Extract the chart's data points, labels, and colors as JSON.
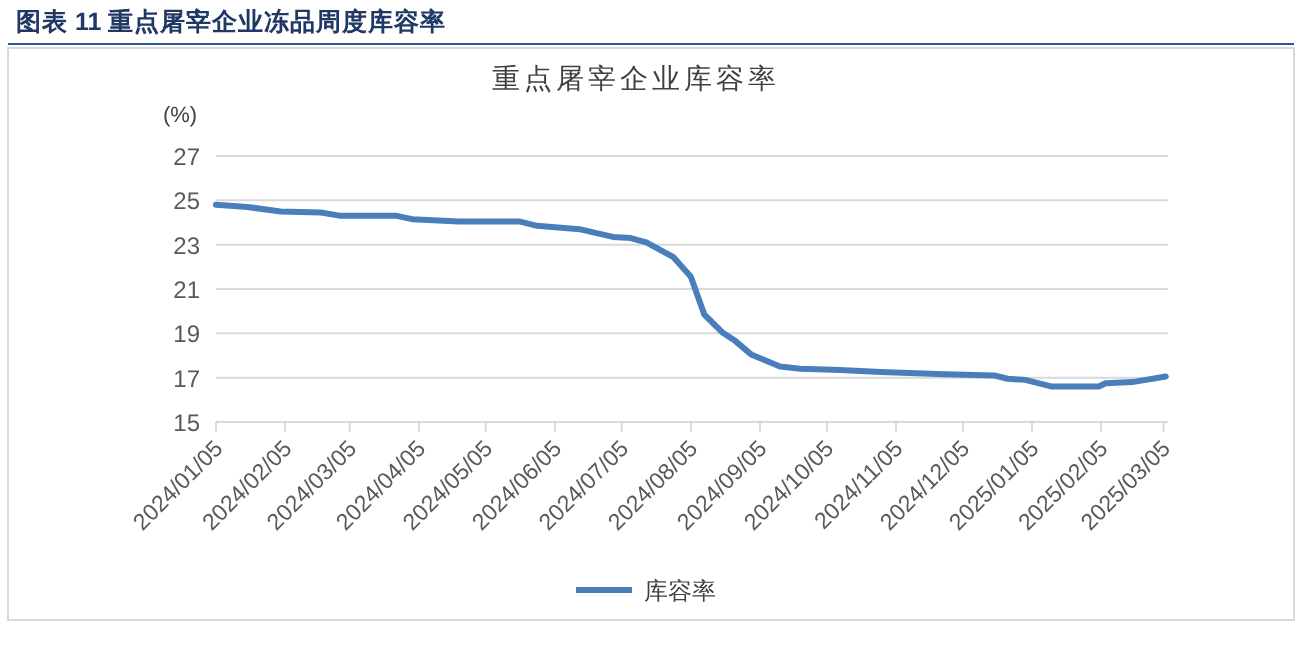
{
  "chart_data": {
    "type": "line",
    "title": "图表 11  重点屠宰企业冻品周度库容率",
    "subtitle": "重点屠宰企业库容率",
    "ylabel": "(%)",
    "x": [
      "2024-01-05",
      "2024-01-19",
      "2024-02-03",
      "2024-02-21",
      "2024-03-01",
      "2024-03-26",
      "2024-04-02",
      "2024-04-23",
      "2024-05-20",
      "2024-05-28",
      "2024-06-16",
      "2024-07-01",
      "2024-07-09",
      "2024-07-16",
      "2024-07-28",
      "2024-08-05",
      "2024-08-11",
      "2024-08-19",
      "2024-08-25",
      "2024-09-01",
      "2024-09-14",
      "2024-09-23",
      "2024-10-11",
      "2024-10-29",
      "2024-11-27",
      "2024-12-19",
      "2024-12-25",
      "2025-01-02",
      "2025-01-14",
      "2025-02-04",
      "2025-02-07",
      "2025-02-19",
      "2025-03-06"
    ],
    "series": [
      {
        "name": "库容率",
        "color": "#4a7ebb",
        "values": [
          24.8,
          24.7,
          24.5,
          24.45,
          24.3,
          24.3,
          24.15,
          24.05,
          24.05,
          23.85,
          23.7,
          23.35,
          23.3,
          23.1,
          22.45,
          21.55,
          19.85,
          19.05,
          18.65,
          18.05,
          17.5,
          17.4,
          17.35,
          17.25,
          17.15,
          17.1,
          16.95,
          16.9,
          16.6,
          16.6,
          16.75,
          16.8,
          17.05
        ]
      }
    ],
    "xlim": [
      "2024-01-05",
      "2025-03-07"
    ],
    "xticks": [
      {
        "value": "2024-01-05",
        "label": "2024/01/05"
      },
      {
        "value": "2024-02-05",
        "label": "2024/02/05"
      },
      {
        "value": "2024-03-05",
        "label": "2024/03/05"
      },
      {
        "value": "2024-04-05",
        "label": "2024/04/05"
      },
      {
        "value": "2024-05-05",
        "label": "2024/05/05"
      },
      {
        "value": "2024-06-05",
        "label": "2024/06/05"
      },
      {
        "value": "2024-07-05",
        "label": "2024/07/05"
      },
      {
        "value": "2024-08-05",
        "label": "2024/08/05"
      },
      {
        "value": "2024-09-05",
        "label": "2024/09/05"
      },
      {
        "value": "2024-10-05",
        "label": "2024/10/05"
      },
      {
        "value": "2024-11-05",
        "label": "2024/11/05"
      },
      {
        "value": "2024-12-05",
        "label": "2024/12/05"
      },
      {
        "value": "2025-01-05",
        "label": "2025/01/05"
      },
      {
        "value": "2025-02-05",
        "label": "2025/02/05"
      },
      {
        "value": "2025-03-05",
        "label": "2025/03/05"
      }
    ],
    "ylim": [
      15,
      27
    ],
    "yticks": [
      15,
      17,
      19,
      21,
      23,
      25,
      27
    ],
    "grid": "y",
    "legend": "bottom",
    "marker": "none",
    "line_style": "solid"
  }
}
